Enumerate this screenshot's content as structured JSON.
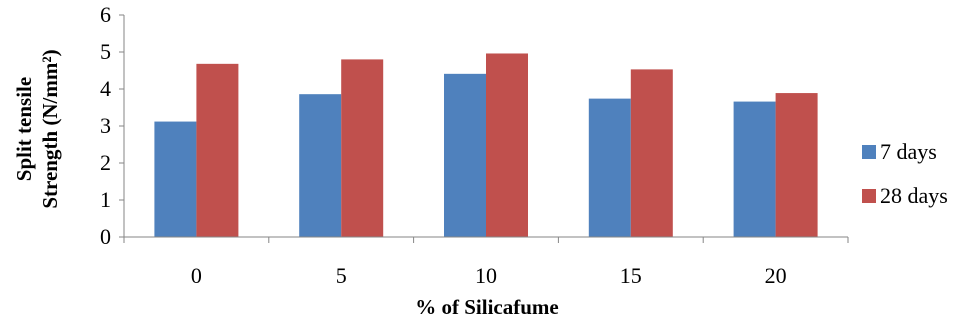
{
  "chart_data": {
    "type": "bar",
    "xlabel": "% of Silicafume",
    "ylabel_line1": "Split tensile",
    "ylabel_line2": "Strength (N/mm²)",
    "categories": [
      "0",
      "5",
      "10",
      "15",
      "20"
    ],
    "ylim": [
      0,
      6
    ],
    "yticks": [
      "0",
      "1",
      "2",
      "3",
      "4",
      "5",
      "6"
    ],
    "grid": false,
    "legend_position": "right",
    "series": [
      {
        "name": "7 days",
        "color": "#4F81BD",
        "values": [
          3.12,
          3.86,
          4.41,
          3.74,
          3.66
        ]
      },
      {
        "name": "28 days",
        "color": "#C0504D",
        "values": [
          4.68,
          4.8,
          4.96,
          4.53,
          3.89
        ]
      }
    ]
  }
}
